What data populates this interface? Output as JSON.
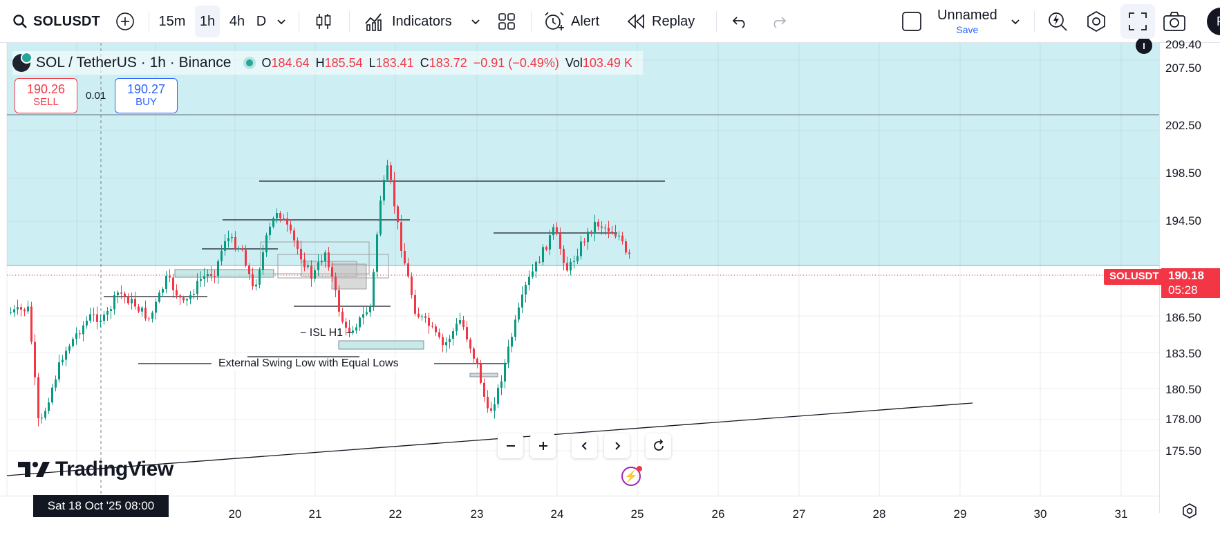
{
  "toolbar": {
    "symbol": "SOLUSDT",
    "timeframes": [
      {
        "label": "15m",
        "active": false
      },
      {
        "label": "1h",
        "active": true
      },
      {
        "label": "4h",
        "active": false
      },
      {
        "label": "D",
        "active": false
      }
    ],
    "indicators_label": "Indicators",
    "alert_label": "Alert",
    "replay_label": "Replay",
    "layout_name": "Unnamed",
    "layout_save": "Save",
    "avatar_initial": "P"
  },
  "legend": {
    "title": "SOL / TetherUS · 1h · Binance",
    "o_key": "O",
    "o": "184.64",
    "h_key": "H",
    "h": "185.54",
    "l_key": "L",
    "l": "183.41",
    "c_key": "C",
    "c": "183.72",
    "change": "−0.91 (−0.49%)",
    "vol_key": "Vol",
    "vol": "103.49 K"
  },
  "trade": {
    "sell_price": "190.26",
    "sell_label": "SELL",
    "spread": "0.01",
    "buy_price": "190.27",
    "buy_label": "BUY"
  },
  "price_axis": {
    "top_partial": "209.40",
    "labels": [
      "207.50",
      "202.50",
      "198.50",
      "194.50",
      "186.50",
      "183.50",
      "180.50",
      "178.00",
      "175.50"
    ],
    "symbol_tag": "SOLUSDT",
    "last_price": "190.18",
    "countdown": "05:28"
  },
  "time_axis": {
    "crosshair_date": "Sat 18 Oct '25   08:00",
    "labels": [
      "20",
      "21",
      "22",
      "23",
      "24",
      "25",
      "26",
      "27",
      "28",
      "29",
      "30",
      "31"
    ]
  },
  "annotations": {
    "isl": "− ISL H1 −",
    "ext_swing": "External Swing Low with Equal Lows"
  },
  "branding": {
    "logo_text": "TradingView"
  },
  "colors": {
    "up": "#089981",
    "down": "#f23645",
    "zone": "#cdeff3",
    "accent": "#2962ff"
  },
  "chart_data": {
    "type": "candlestick",
    "symbol": "SOLUSDT",
    "interval": "1h",
    "last_price": 190.18,
    "y_range": [
      174,
      210
    ],
    "x_ticks": [
      "20",
      "21",
      "22",
      "23",
      "24",
      "25",
      "26",
      "27",
      "28",
      "29",
      "30",
      "31"
    ],
    "ohlc_last": {
      "open": 184.64,
      "high": 185.54,
      "low": 183.41,
      "close": 183.72
    }
  }
}
